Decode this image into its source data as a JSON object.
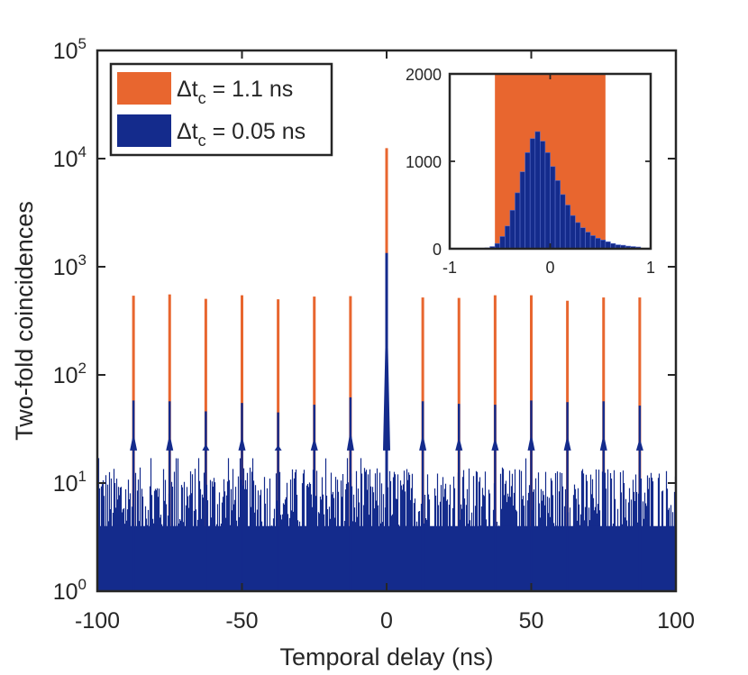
{
  "chart_data": [
    {
      "type": "bar",
      "xlabel": "Temporal delay (ns)",
      "ylabel": "Two-fold coincidences",
      "xlim": [
        -100,
        100
      ],
      "ylim": [
        1,
        100000
      ],
      "yscale": "log",
      "grid": false,
      "x_ticks": [
        "-100",
        "-50",
        "0",
        "50",
        "100"
      ],
      "y_ticks": [
        {
          "base": "10",
          "exp": "0"
        },
        {
          "base": "10",
          "exp": "1"
        },
        {
          "base": "10",
          "exp": "2"
        },
        {
          "base": "10",
          "exp": "3"
        },
        {
          "base": "10",
          "exp": "4"
        },
        {
          "base": "10",
          "exp": "5"
        }
      ],
      "legend_position": "top-left",
      "series": [
        {
          "name": {
            "main": "Δt",
            "sub": "c",
            "rest": " = 1.1 ns"
          },
          "color": "#e8662f",
          "peak_delays_ns": [
            -87.5,
            -75,
            -62.5,
            -50,
            -37.5,
            -25,
            -12.5,
            0,
            12.5,
            25,
            37.5,
            50,
            62.5,
            75,
            87.5
          ],
          "peak_counts": [
            540,
            555,
            505,
            545,
            500,
            530,
            535,
            12500,
            520,
            515,
            545,
            545,
            485,
            520,
            520
          ]
        },
        {
          "name": {
            "main": "Δt",
            "sub": "c",
            "rest": " = 0.05 ns"
          },
          "color": "#142b8c",
          "peak_delays_ns": [
            -87.5,
            -75,
            -62.5,
            -50,
            -37.5,
            -25,
            -12.5,
            0,
            12.5,
            25,
            37.5,
            50,
            62.5,
            75,
            87.5
          ],
          "peak_counts": [
            58,
            57,
            46,
            55,
            45,
            53,
            62,
            1340,
            57,
            54,
            53,
            58,
            56,
            57,
            52
          ],
          "background_counts_range": [
            3,
            14
          ]
        }
      ]
    },
    {
      "type": "bar",
      "inset": true,
      "xlim": [
        -1,
        1
      ],
      "ylim": [
        0,
        2000
      ],
      "x_ticks": [
        "-1",
        "0",
        "1"
      ],
      "y_ticks": [
        "0",
        "1000",
        "2000"
      ],
      "orange_window_ns": [
        -0.55,
        0.55
      ],
      "orange_window_color": "#e8662f",
      "bar_color": "#142b8c",
      "bin_width_ns": 0.05,
      "bin_starts_ns": [
        -0.65,
        -0.6,
        -0.55,
        -0.5,
        -0.45,
        -0.4,
        -0.35,
        -0.3,
        -0.25,
        -0.2,
        -0.15,
        -0.1,
        -0.05,
        0.0,
        0.05,
        0.1,
        0.15,
        0.2,
        0.25,
        0.3,
        0.35,
        0.4,
        0.45,
        0.5,
        0.55,
        0.6,
        0.65,
        0.7,
        0.75,
        0.8,
        0.85
      ],
      "bin_counts": [
        10,
        25,
        60,
        140,
        260,
        440,
        640,
        880,
        1100,
        1260,
        1340,
        1230,
        1100,
        940,
        780,
        620,
        500,
        380,
        300,
        240,
        190,
        150,
        120,
        100,
        80,
        60,
        45,
        40,
        30,
        25,
        20
      ]
    }
  ]
}
